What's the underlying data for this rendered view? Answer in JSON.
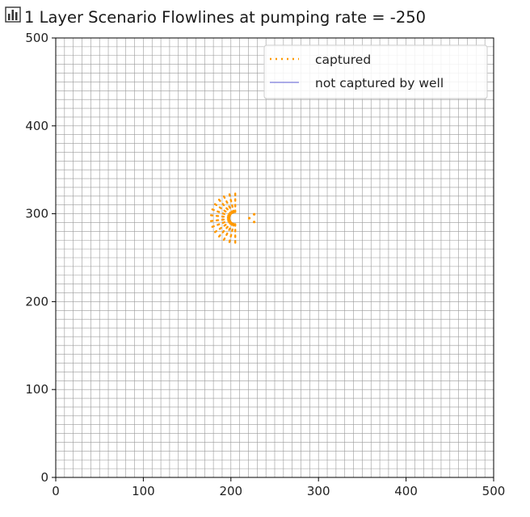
{
  "window": {
    "icon": "bar-chart-icon"
  },
  "chart_data": {
    "type": "line",
    "title": "1 Layer Scenario Flowlines at pumping rate = -250",
    "xlabel": "",
    "ylabel": "",
    "xlim": [
      0,
      500
    ],
    "ylim": [
      0,
      500
    ],
    "xticks": [
      "0",
      "100",
      "200",
      "300",
      "400",
      "500"
    ],
    "yticks": [
      "0",
      "100",
      "200",
      "300",
      "400",
      "500"
    ],
    "grid": {
      "spacing": 10,
      "color": "#9a9a9a"
    },
    "well": {
      "x": 205,
      "y": 295
    },
    "legend": {
      "placement": "top-right",
      "entries": [
        {
          "label": "captured",
          "color": "#ff9900",
          "style": "dotted"
        },
        {
          "label": "not captured by well",
          "color": "#5b5bd6",
          "style": "solid"
        }
      ]
    },
    "series": [
      {
        "name": "captured",
        "color": "#ff9900",
        "description_points": "particles converging on the well"
      },
      {
        "name": "not captured by well",
        "color": "#4646e0"
      }
    ]
  }
}
